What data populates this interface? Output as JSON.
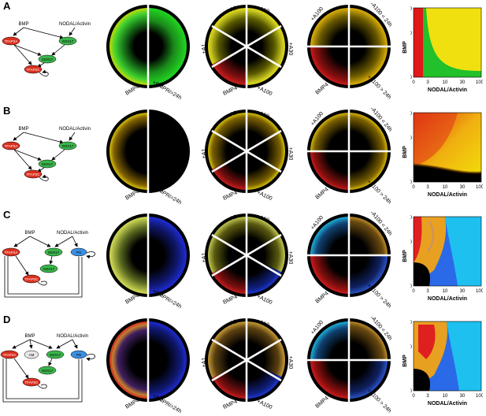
{
  "panels": [
    {
      "label": "A",
      "net": {
        "bmp": "BMP",
        "nodal": "NODAL/Activin",
        "tfap2a": "TFAP2A",
        "sox17a": "SOX17",
        "sox17b": "SOX17",
        "tfap2c": "TFAP2C"
      },
      "c1": {
        "left": "BMP4",
        "right": "+BMPRi>24h"
      },
      "c2": {
        "tl": "+A3",
        "tr": "+A10",
        "l": "+A1",
        "r": "+A30",
        "bl": "BMP4",
        "br": "+A100"
      },
      "c3": {
        "tl": "+A100",
        "tr": "+A100 < 24h",
        "bl": "BMP4",
        "br": "+A100 > 24h"
      },
      "hm": {
        "ylabel": "BMP",
        "xlabel": "NODAL/Activin",
        "yticks": [
          "0",
          "10",
          "50"
        ],
        "xticks": [
          "0",
          "3",
          "10",
          "30",
          "100"
        ]
      }
    },
    {
      "label": "B",
      "net": {
        "bmp": "BMP",
        "nodal": "NODAL/Activin",
        "tfap2a": "TFAP2A",
        "sox17a": "SOX17",
        "sox17b": "SOX17",
        "tfap2c": "TFAP2C"
      },
      "c1": {
        "left": "BMP4",
        "right": "+BMPRi>24h"
      },
      "c2": {
        "tl": "+A3",
        "tr": "+A10",
        "l": "+A1",
        "r": "+A30",
        "bl": "BMP4",
        "br": "+A100"
      },
      "c3": {
        "tl": "+A100",
        "tr": "+A100 < 24h",
        "bl": "BMP4",
        "br": "+A100 > 24h"
      },
      "hm": {
        "ylabel": "BMP",
        "xlabel": "NODAL/Activin",
        "yticks": [
          "0",
          "10",
          "50"
        ],
        "xticks": [
          "0",
          "3",
          "10",
          "30",
          "100"
        ]
      }
    },
    {
      "label": "C",
      "net": {
        "bmp": "BMP",
        "nodal": "NODAL/Activin",
        "tfap2a": "TFAP2A",
        "sox17a": "SOX17",
        "sox17b": "SOX17",
        "tfap2c": "TFAP2C",
        "ps": "PS"
      },
      "c1": {
        "left": "BMP4",
        "right": "+BMPRi>24h"
      },
      "c2": {
        "tl": "+A3",
        "tr": "+A10",
        "l": "+A1",
        "r": "+A30",
        "bl": "BMP4",
        "br": "+A100"
      },
      "c3": {
        "tl": "+A100",
        "tr": "+A100 < 24h",
        "bl": "BMP4",
        "br": "+A100 > 24h"
      },
      "hm": {
        "ylabel": "BMP",
        "xlabel": "NODAL/Activin",
        "yticks": [
          "0",
          "10",
          "50"
        ],
        "xticks": [
          "0",
          "3",
          "10",
          "30",
          "100"
        ]
      }
    },
    {
      "label": "D",
      "net": {
        "bmp": "BMP",
        "nodal": "NODAL/Activin",
        "tfap2a": "TFAP2A",
        "am": "AM",
        "sox17a": "SOX17",
        "sox17b": "SOX17",
        "tfap2c": "TFAP2C",
        "ps": "PS"
      },
      "c1": {
        "left": "BMP4",
        "right": "+BMPRi>24h"
      },
      "c2": {
        "tl": "+A3",
        "tr": "+A10",
        "l": "+A1",
        "r": "+A30",
        "bl": "BMP4",
        "br": "+A100"
      },
      "c3": {
        "tl": "+A100",
        "tr": "+A100 < 24h",
        "bl": "BMP4",
        "br": "+A100 > 24h"
      },
      "hm": {
        "ylabel": "BMP",
        "xlabel": "NODAL/Activin",
        "yticks": [
          "0",
          "10",
          "50"
        ],
        "xticks": [
          "0",
          "3",
          "10",
          "30",
          "100"
        ]
      }
    }
  ],
  "colors": {
    "tfap2": "#d9301e",
    "sox17": "#39b54a",
    "ps": "#3b8fe0",
    "am": "#e6e6e6",
    "yellow": "#f2e00a",
    "red": "#e02020",
    "green": "#22c02a",
    "blue": "#1a36e0",
    "cyan": "#1ec8f0",
    "orange": "#d4a030"
  }
}
